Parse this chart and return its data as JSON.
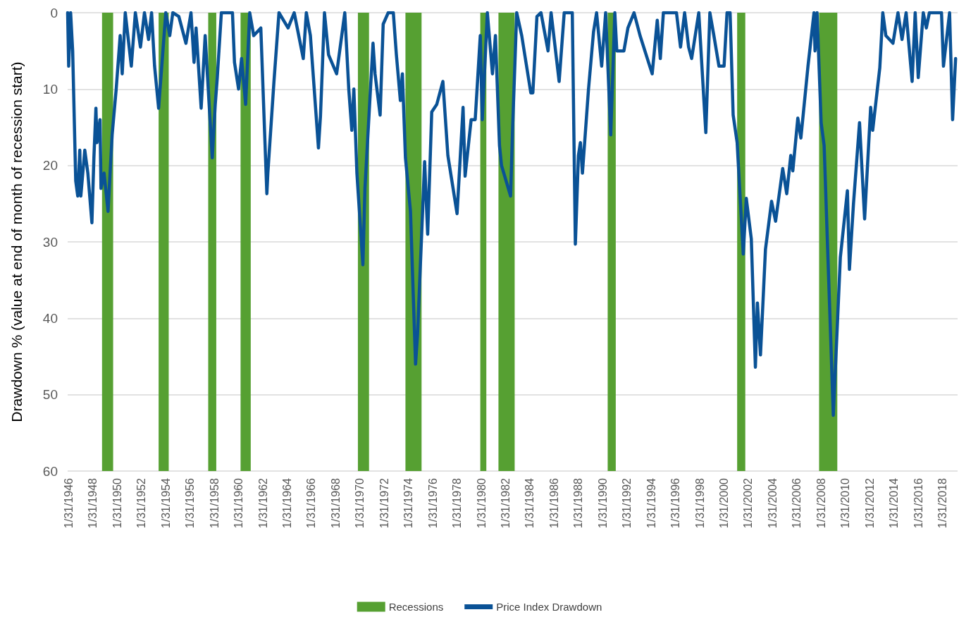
{
  "chart_data": {
    "type": "line",
    "ylabel": "Drawdown % (value at end of month of recession start)",
    "xlim": [
      "1946-01",
      "2019-04-30"
    ],
    "ylim": [
      60,
      0
    ],
    "yticks": [
      0,
      10,
      20,
      30,
      40,
      50,
      60
    ],
    "xticks": [
      {
        "value": "1946-01-31",
        "label": "1/31/1946"
      },
      {
        "value": "1948-01-31",
        "label": "1/31/1948"
      },
      {
        "value": "1950-01-31",
        "label": "1/31/1950"
      },
      {
        "value": "1952-01-31",
        "label": "1/31/1952"
      },
      {
        "value": "1954-01-31",
        "label": "1/31/1954"
      },
      {
        "value": "1956-01-31",
        "label": "1/31/1956"
      },
      {
        "value": "1958-01-31",
        "label": "1/31/1958"
      },
      {
        "value": "1960-01-31",
        "label": "1/31/1960"
      },
      {
        "value": "1962-01-31",
        "label": "1/31/1962"
      },
      {
        "value": "1964-01-31",
        "label": "1/31/1964"
      },
      {
        "value": "1966-01-31",
        "label": "1/31/1966"
      },
      {
        "value": "1968-01-31",
        "label": "1/31/1968"
      },
      {
        "value": "1970-01-31",
        "label": "1/31/1970"
      },
      {
        "value": "1972-01-31",
        "label": "1/31/1972"
      },
      {
        "value": "1974-01-31",
        "label": "1/31/1974"
      },
      {
        "value": "1976-01-31",
        "label": "1/31/1976"
      },
      {
        "value": "1978-01-31",
        "label": "1/31/1978"
      },
      {
        "value": "1980-01-31",
        "label": "1/31/1980"
      },
      {
        "value": "1982-01-31",
        "label": "1/31/1982"
      },
      {
        "value": "1984-01-31",
        "label": "1/31/1984"
      },
      {
        "value": "1986-01-31",
        "label": "1/31/1986"
      },
      {
        "value": "1988-01-31",
        "label": "1/31/1988"
      },
      {
        "value": "1990-01-31",
        "label": "1/31/1990"
      },
      {
        "value": "1992-01-31",
        "label": "1/31/1992"
      },
      {
        "value": "1994-01-31",
        "label": "1/31/1994"
      },
      {
        "value": "1996-01-31",
        "label": "1/31/1996"
      },
      {
        "value": "1998-01-31",
        "label": "1/31/1998"
      },
      {
        "value": "2000-01-31",
        "label": "1/31/2000"
      },
      {
        "value": "2002-01-31",
        "label": "1/31/2002"
      },
      {
        "value": "2004-01-31",
        "label": "1/31/2004"
      },
      {
        "value": "2006-01-31",
        "label": "1/31/2006"
      },
      {
        "value": "2008-01-31",
        "label": "1/31/2008"
      },
      {
        "value": "2010-01-31",
        "label": "1/31/2010"
      },
      {
        "value": "2012-01-31",
        "label": "1/31/2012"
      },
      {
        "value": "2014-01-31",
        "label": "1/31/2014"
      },
      {
        "value": "2016-01-31",
        "label": "1/31/2016"
      },
      {
        "value": "2018-01-31",
        "label": "1/31/2018"
      }
    ],
    "grid": "y",
    "legend": "bottom",
    "marker": "none",
    "line_style": "solid",
    "bands": [
      {
        "axis": "x",
        "from": "1948-11",
        "to": "1949-10",
        "label": "Recessions",
        "color": "#56a032"
      },
      {
        "axis": "x",
        "from": "1953-07",
        "to": "1954-05",
        "color": "#56a032"
      },
      {
        "axis": "x",
        "from": "1957-08",
        "to": "1958-04",
        "color": "#56a032"
      },
      {
        "axis": "x",
        "from": "1960-04",
        "to": "1961-02",
        "color": "#56a032"
      },
      {
        "axis": "x",
        "from": "1969-12",
        "to": "1970-11",
        "color": "#56a032"
      },
      {
        "axis": "x",
        "from": "1973-11",
        "to": "1975-03",
        "color": "#56a032"
      },
      {
        "axis": "x",
        "from": "1980-01",
        "to": "1980-07",
        "color": "#56a032"
      },
      {
        "axis": "x",
        "from": "1981-07",
        "to": "1982-11",
        "color": "#56a032"
      },
      {
        "axis": "x",
        "from": "1990-07",
        "to": "1991-03",
        "color": "#56a032"
      },
      {
        "axis": "x",
        "from": "2001-03",
        "to": "2001-11",
        "color": "#56a032"
      },
      {
        "axis": "x",
        "from": "2007-12",
        "to": "2009-06",
        "color": "#56a032"
      }
    ],
    "series": [
      {
        "name": "Price Index Drawdown",
        "color": "#0a5296",
        "x": [
          "1946-01",
          "1946-02",
          "1946-04",
          "1946-06",
          "1946-09",
          "1946-11",
          "1947-01",
          "1947-02",
          "1947-06",
          "1947-09",
          "1948-01",
          "1948-03",
          "1948-05",
          "1948-06",
          "1948-09",
          "1948-10",
          "1949-01",
          "1949-05",
          "1949-09",
          "1950-01",
          "1950-05",
          "1950-07",
          "1950-10",
          "1951-04",
          "1951-08",
          "1952-01",
          "1952-05",
          "1952-09",
          "1952-12",
          "1953-03",
          "1953-07",
          "1954-02",
          "1954-06",
          "1954-09",
          "1955-03",
          "1955-10",
          "1956-03",
          "1956-06",
          "1956-08",
          "1957-01",
          "1957-05",
          "1957-12",
          "1958-03",
          "1958-05",
          "1958-09",
          "1959-08",
          "1959-10",
          "1960-02",
          "1960-05",
          "1960-09",
          "1961-01",
          "1961-05",
          "1961-12",
          "1962-06",
          "1962-07",
          "1963-01",
          "1963-06",
          "1964-03",
          "1964-09",
          "1965-06",
          "1965-09",
          "1966-01",
          "1966-09",
          "1966-11",
          "1967-03",
          "1967-07",
          "1968-03",
          "1968-11",
          "1969-03",
          "1969-06",
          "1969-08",
          "1969-11",
          "1970-05",
          "1970-07",
          "1971-03",
          "1971-05",
          "1971-10",
          "1972-01",
          "1972-06",
          "1972-11",
          "1973-02",
          "1973-06",
          "1973-08",
          "1973-11",
          "1974-04",
          "1974-09",
          "1974-11",
          "1975-06",
          "1975-09",
          "1976-01",
          "1976-06",
          "1976-12",
          "1977-05",
          "1978-02",
          "1978-08",
          "1978-10",
          "1979-04",
          "1979-08",
          "1980-01",
          "1980-03",
          "1980-08",
          "1981-01",
          "1981-04",
          "1981-08",
          "1981-10",
          "1982-07",
          "1982-09",
          "1983-01",
          "1983-06",
          "1984-03",
          "1984-05",
          "1984-09",
          "1985-01",
          "1985-08",
          "1985-11",
          "1986-07",
          "1986-12",
          "1987-08",
          "1987-11",
          "1988-02",
          "1988-04",
          "1988-06",
          "1988-12",
          "1989-05",
          "1989-08",
          "1990-01",
          "1990-05",
          "1990-10",
          "1991-02",
          "1991-04",
          "1991-11",
          "1992-03",
          "1992-09",
          "1993-03",
          "1994-03",
          "1994-08",
          "1994-11",
          "1995-02",
          "1996-03",
          "1996-07",
          "1996-11",
          "1997-03",
          "1997-06",
          "1998-01",
          "1998-08",
          "1998-12",
          "1999-04",
          "1999-09",
          "2000-02",
          "2000-05",
          "2000-08",
          "2000-11",
          "2001-03",
          "2001-09",
          "2001-12",
          "2002-05",
          "2002-09",
          "2002-11",
          "2003-02",
          "2003-07",
          "2004-01",
          "2004-05",
          "2004-12",
          "2005-04",
          "2005-08",
          "2005-10",
          "2006-03",
          "2006-06",
          "2007-01",
          "2007-07",
          "2007-08",
          "2007-10",
          "2008-02",
          "2008-05",
          "2009-02",
          "2009-06",
          "2009-09",
          "2010-04",
          "2010-06",
          "2010-10",
          "2011-04",
          "2011-09",
          "2012-03",
          "2012-05",
          "2012-12",
          "2013-03",
          "2013-06",
          "2014-01",
          "2014-06",
          "2014-10",
          "2015-02",
          "2015-08",
          "2015-11",
          "2016-02",
          "2016-07",
          "2016-10",
          "2017-01",
          "2018-01",
          "2018-03",
          "2018-09",
          "2018-12",
          "2019-03"
        ],
        "values": [
          0,
          7,
          0,
          5,
          22,
          24,
          18,
          24,
          18,
          21,
          27.5,
          19,
          12.5,
          17,
          14,
          23,
          21,
          26,
          16,
          10,
          3,
          8,
          0,
          7,
          0,
          4.5,
          0,
          3.5,
          0,
          7,
          12.5,
          0,
          3,
          0,
          0.5,
          4,
          0,
          6.5,
          2,
          12.5,
          3,
          19,
          12,
          8.5,
          0,
          0,
          6.5,
          10,
          6,
          12,
          0,
          3,
          2,
          23.7,
          21,
          9,
          0,
          2,
          0,
          6,
          0,
          3,
          17.7,
          13.5,
          0,
          5.5,
          8,
          0,
          10,
          15.4,
          10,
          21,
          33,
          23,
          4,
          8,
          13.4,
          1.5,
          0,
          0,
          5.5,
          11.5,
          8,
          19,
          26,
          46,
          42,
          19.5,
          29,
          13,
          12,
          9,
          18.7,
          26.3,
          12.4,
          21.4,
          14,
          14,
          3,
          14,
          0,
          8,
          3,
          17.4,
          20,
          24,
          15,
          0,
          3,
          10.5,
          10.5,
          0.5,
          0,
          5,
          0,
          9,
          0,
          0,
          30.3,
          18.7,
          17,
          21,
          10,
          2.5,
          0,
          7,
          0,
          16,
          0,
          5,
          5,
          2,
          0,
          3,
          8,
          1,
          6,
          0,
          0,
          4.5,
          0,
          4.5,
          6,
          0,
          15.7,
          0,
          3,
          7,
          7,
          0,
          0,
          13.4,
          17,
          31.6,
          24.3,
          29.6,
          46.4,
          38,
          44.8,
          31,
          24.7,
          27.3,
          20.4,
          23.7,
          18.7,
          20.7,
          13.8,
          16.4,
          7,
          0,
          5,
          0,
          14.4,
          17.4,
          52.7,
          41,
          32,
          23.3,
          33.6,
          25,
          14.4,
          27,
          12.4,
          15.4,
          7.2,
          0,
          3,
          4,
          0,
          3.5,
          0,
          9,
          0,
          8.5,
          0,
          2,
          0,
          0,
          7,
          0,
          14,
          6
        ]
      }
    ]
  }
}
